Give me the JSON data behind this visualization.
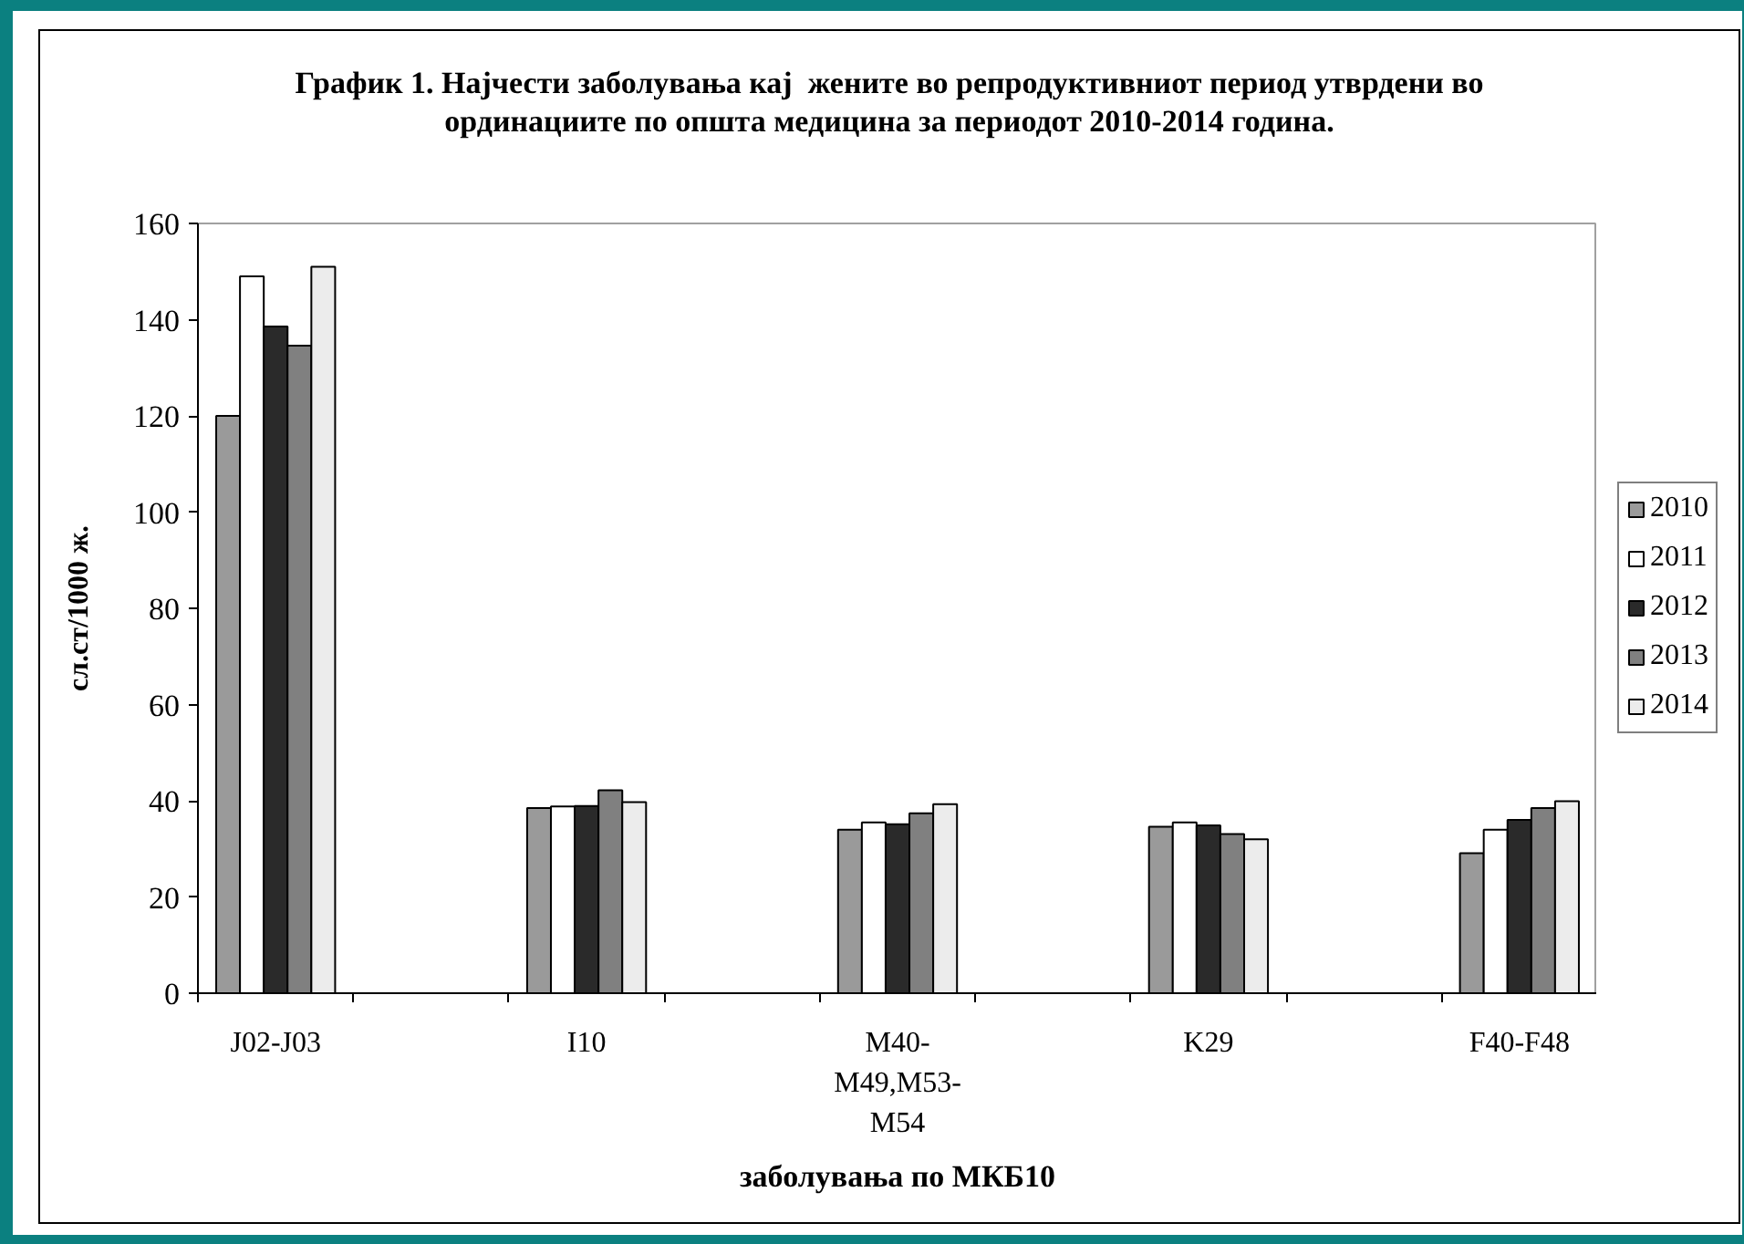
{
  "chart_data": {
    "type": "bar",
    "title": "График 1. Најчести заболувања кај  жените во репродуктивниот период утврдени во ординациите по општа медицина за периодот 2010-2014 година.",
    "xlabel": "заболувања по МКБ10",
    "ylabel": "сл.ст/1000 ж.",
    "categories": [
      "J02-J03",
      null,
      "I10",
      null,
      "M40-M49,M53-M54",
      null,
      "K29",
      null,
      "F40-F48"
    ],
    "series": [
      {
        "name": "2010",
        "color": "#9a9a9a",
        "values": [
          120,
          null,
          38.5,
          null,
          34.0,
          null,
          34.6,
          null,
          29.1
        ]
      },
      {
        "name": "2011",
        "color": "#ffffff",
        "values": [
          149,
          null,
          38.8,
          null,
          35.5,
          null,
          35.5,
          null,
          34.0
        ]
      },
      {
        "name": "2012",
        "color": "#2a2a2a",
        "values": [
          138.6,
          null,
          38.9,
          null,
          35.1,
          null,
          34.9,
          null,
          36.0
        ]
      },
      {
        "name": "2013",
        "color": "#808080",
        "values": [
          134.6,
          null,
          42.2,
          null,
          37.4,
          null,
          33.1,
          null,
          38.5
        ]
      },
      {
        "name": "2014",
        "color": "#ececec",
        "values": [
          151,
          null,
          39.7,
          null,
          39.3,
          null,
          32.0,
          null,
          39.9
        ]
      }
    ],
    "ylim": [
      0,
      160
    ],
    "yticks": [
      0,
      20,
      40,
      60,
      80,
      100,
      120,
      140,
      160
    ],
    "legend": "right",
    "grid": false
  }
}
